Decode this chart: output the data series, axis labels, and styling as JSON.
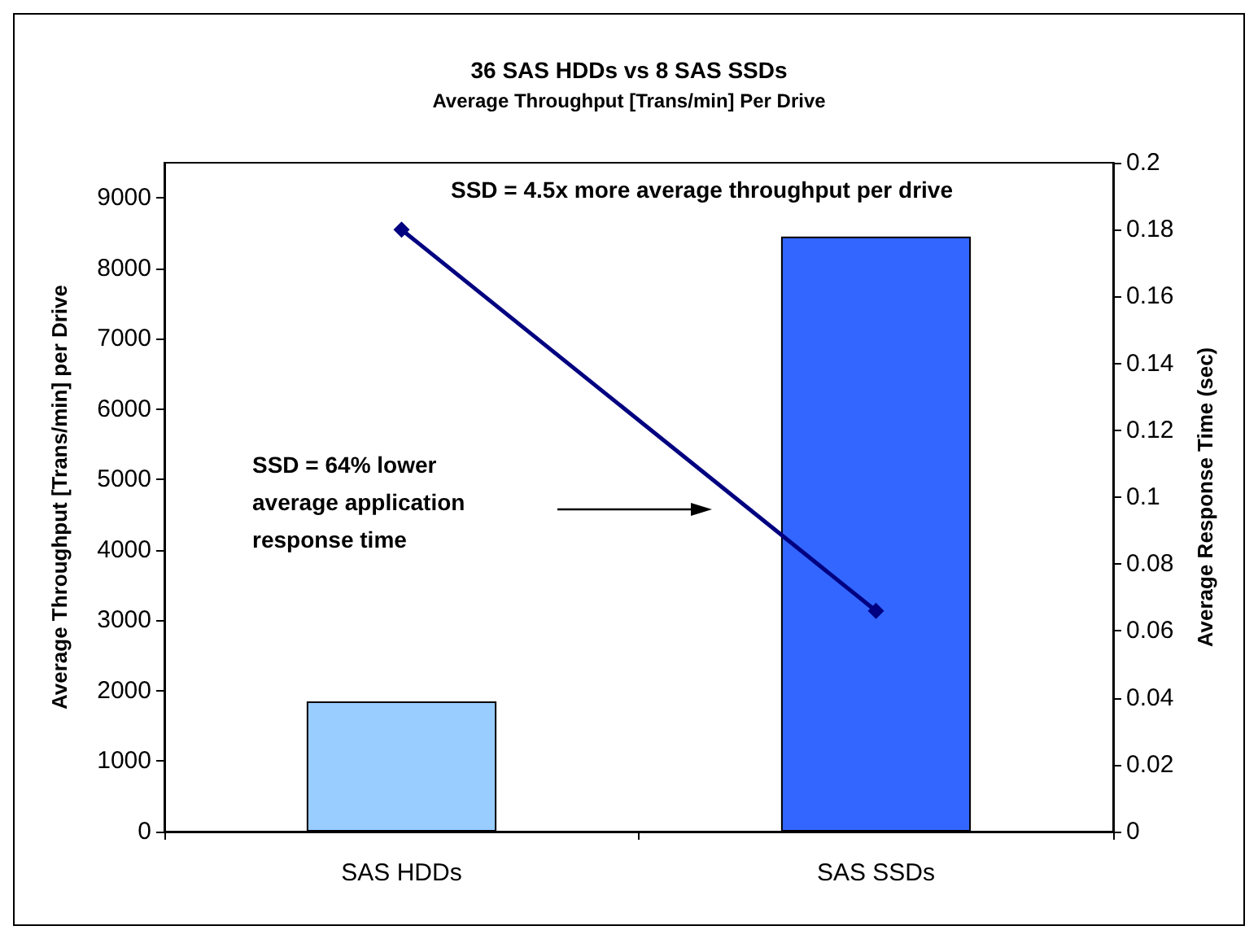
{
  "chart_data": {
    "type": "bar",
    "title": "36 SAS HDDs vs 8 SAS SSDs",
    "subtitle": "Average Throughput [Trans/min] Per Drive",
    "categories": [
      "SAS HDDs",
      "SAS SSDs"
    ],
    "series": [
      {
        "values": [
          1850,
          8450
        ],
        "colors": [
          "#99ccff",
          "#3366ff"
        ]
      },
      {
        "type": "line",
        "axis": "y2",
        "color": "#000080",
        "marker": "diamond",
        "values": [
          0.18,
          0.066
        ]
      }
    ],
    "ylabel": "Average Throughput [Trans/min] per Drive",
    "y2label": "Average Response Time (sec)",
    "ylim": [
      0,
      9500
    ],
    "yticks": [
      0,
      1000,
      2000,
      3000,
      4000,
      5000,
      6000,
      7000,
      8000,
      9000
    ],
    "y2lim": [
      0,
      0.2
    ],
    "y2ticks": [
      0,
      0.02,
      0.04,
      0.06,
      0.08,
      0.1,
      0.12,
      0.14,
      0.16,
      0.18,
      0.2
    ],
    "grid": false,
    "annotations": [
      "SSD = 4.5x more average throughput per drive",
      "SSD = 64% lower\naverage application\nresponse time"
    ]
  }
}
